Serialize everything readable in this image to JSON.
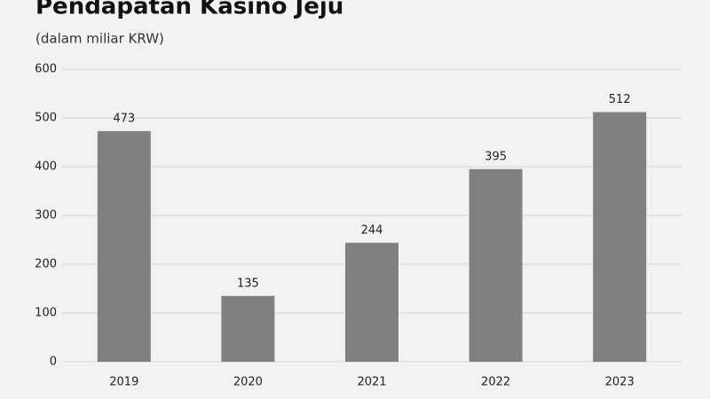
{
  "chart_data": {
    "type": "bar",
    "title": "Pendapatan Kasino Jeju",
    "subtitle": "(dalam miliar KRW)",
    "categories": [
      "2019",
      "2020",
      "2021",
      "2022",
      "2023"
    ],
    "values": [
      473,
      135,
      244,
      395,
      512
    ],
    "color": "#808080",
    "ylim": [
      0,
      600
    ],
    "yticks": [
      0,
      100,
      200,
      300,
      400,
      500,
      600
    ],
    "grid": true
  }
}
